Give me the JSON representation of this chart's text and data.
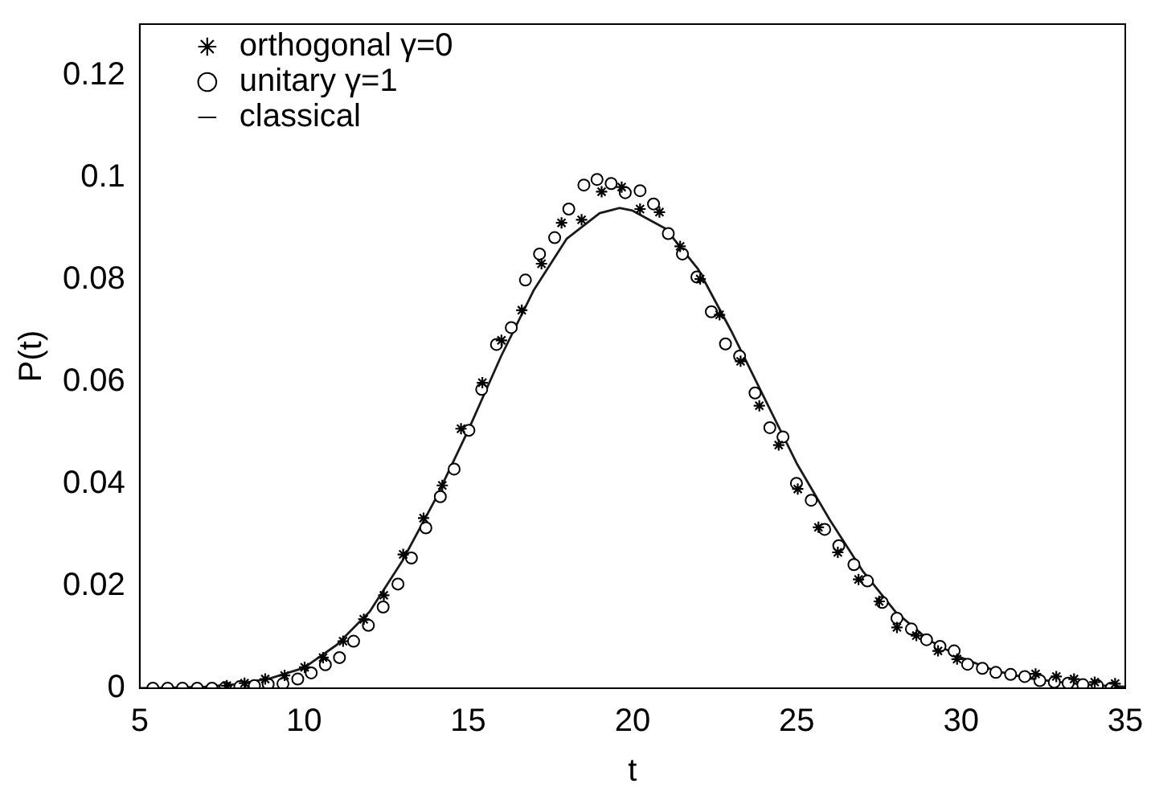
{
  "chart_data": {
    "type": "scatter",
    "xlabel": "t",
    "ylabel": "P(t)",
    "xlim": [
      5,
      35
    ],
    "ylim": [
      0,
      0.13
    ],
    "xticks": [
      5,
      10,
      15,
      20,
      25,
      30,
      35
    ],
    "yticks": [
      0,
      0.02,
      0.04,
      0.06,
      0.08,
      0.1,
      0.12
    ],
    "grid": false,
    "legend": "top",
    "series": [
      {
        "name": "orthogonal γ=0",
        "marker": "cross",
        "color": "#000000",
        "x": [
          7.65,
          8.19,
          8.82,
          9.41,
          10.02,
          10.58,
          11.19,
          11.82,
          12.43,
          13.02,
          13.64,
          14.21,
          14.78,
          15.43,
          16.01,
          16.63,
          17.23,
          17.84,
          18.45,
          19.06,
          19.67,
          20.23,
          20.82,
          21.45,
          22.06,
          22.65,
          23.29,
          23.86,
          24.45,
          25.03,
          25.66,
          26.25,
          26.88,
          27.51,
          28.05,
          28.64,
          29.3,
          29.88,
          32.27,
          32.9,
          33.44,
          34.07,
          34.69
        ],
        "values": [
          0.0005,
          0.001,
          0.0018,
          0.0025,
          0.0041,
          0.006,
          0.0092,
          0.0135,
          0.0182,
          0.0262,
          0.0333,
          0.0397,
          0.0508,
          0.0598,
          0.0681,
          0.074,
          0.0831,
          0.0911,
          0.0917,
          0.0972,
          0.0981,
          0.0938,
          0.0932,
          0.0865,
          0.0801,
          0.0731,
          0.064,
          0.0553,
          0.0476,
          0.039,
          0.0315,
          0.0266,
          0.0213,
          0.017,
          0.0119,
          0.0103,
          0.0073,
          0.0057,
          0.0028,
          0.0023,
          0.0018,
          0.0012,
          0.0009
        ]
      },
      {
        "name": "unitary γ=1",
        "marker": "circle",
        "color": "#000000",
        "x": [
          5.4,
          5.85,
          6.3,
          6.75,
          7.2,
          7.6,
          8.05,
          8.49,
          8.91,
          9.36,
          9.81,
          10.22,
          10.65,
          11.08,
          11.51,
          11.96,
          12.41,
          12.86,
          13.27,
          13.71,
          14.15,
          14.57,
          15.02,
          15.41,
          15.86,
          16.31,
          16.74,
          17.17,
          17.63,
          18.06,
          18.52,
          18.92,
          19.35,
          19.78,
          20.23,
          20.64,
          21.09,
          21.52,
          21.96,
          22.4,
          22.83,
          23.26,
          23.73,
          24.18,
          24.58,
          24.99,
          25.44,
          25.85,
          26.28,
          26.74,
          27.15,
          27.6,
          28.05,
          28.49,
          28.95,
          29.36,
          29.79,
          30.2,
          30.65,
          31.06,
          31.51,
          31.94,
          32.4,
          32.84,
          33.26,
          33.71,
          34.15,
          34.57
        ],
        "values": [
          0,
          0,
          0,
          0,
          0,
          0.0001,
          0.0003,
          0.0005,
          0.0008,
          0.0009,
          0.0018,
          0.003,
          0.0046,
          0.006,
          0.0092,
          0.0123,
          0.0159,
          0.0204,
          0.0255,
          0.0314,
          0.0375,
          0.0429,
          0.0505,
          0.0585,
          0.0673,
          0.0706,
          0.0799,
          0.085,
          0.0882,
          0.0938,
          0.0985,
          0.0996,
          0.0988,
          0.097,
          0.0974,
          0.0948,
          0.089,
          0.085,
          0.0805,
          0.0737,
          0.0674,
          0.065,
          0.0578,
          0.051,
          0.0492,
          0.0401,
          0.0368,
          0.0311,
          0.0279,
          0.0242,
          0.021,
          0.0168,
          0.0137,
          0.0116,
          0.0095,
          0.0082,
          0.0073,
          0.0047,
          0.0039,
          0.0031,
          0.0027,
          0.0023,
          0.0015,
          0.0012,
          0.001,
          0.0007,
          0.0005,
          0
        ]
      },
      {
        "name": "classical",
        "type": "line",
        "marker": "none",
        "line_style": "solid",
        "color": "#1a1a1a",
        "x": [
          5,
          6,
          7,
          8,
          9,
          10,
          11,
          12,
          13,
          14,
          15,
          16,
          17,
          18,
          19,
          19.6,
          20,
          21,
          22,
          23,
          24,
          25,
          26,
          27,
          28,
          29,
          30,
          31,
          32,
          33,
          34,
          35
        ],
        "values": [
          0,
          0.0001,
          0.0003,
          0.0008,
          0.002,
          0.004,
          0.0085,
          0.015,
          0.025,
          0.037,
          0.0505,
          0.065,
          0.078,
          0.088,
          0.093,
          0.094,
          0.0935,
          0.09,
          0.082,
          0.07,
          0.057,
          0.044,
          0.033,
          0.023,
          0.015,
          0.0095,
          0.006,
          0.0035,
          0.002,
          0.0012,
          0.0006,
          0.0003
        ]
      }
    ]
  }
}
